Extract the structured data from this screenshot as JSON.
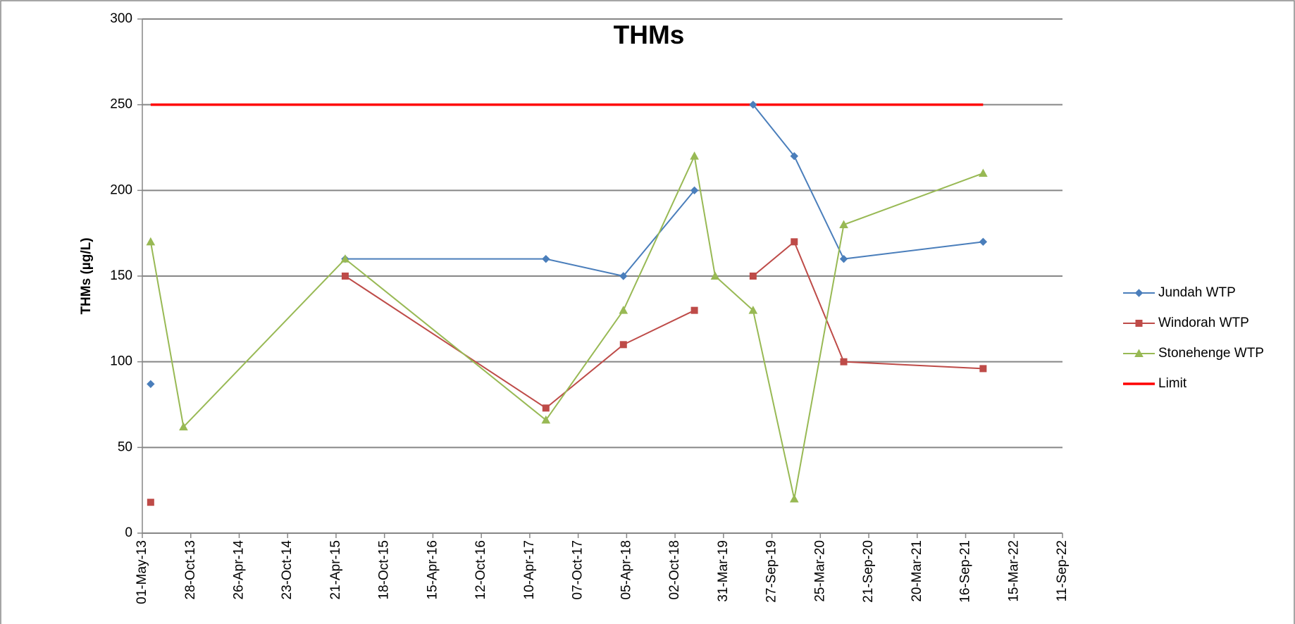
{
  "chart_data": {
    "type": "line",
    "title": "THMs",
    "y_label": "THMs (µg/L)",
    "x": [
      "2013-06-01",
      "2013-10-01",
      "2015-05-25",
      "2017-06-09",
      "2018-03-24",
      "2018-12-13",
      "2019-02-28",
      "2019-07-19",
      "2019-12-19",
      "2020-06-20",
      "2021-11-20"
    ],
    "series": [
      {
        "name": "Jundah WTP",
        "color": "#4a7ebb",
        "marker": "diamond",
        "values": [
          87,
          null,
          160,
          160,
          150,
          200,
          null,
          250,
          220,
          160,
          170
        ]
      },
      {
        "name": "Windorah WTP",
        "color": "#be4b48",
        "marker": "square",
        "values": [
          18,
          null,
          150,
          73,
          110,
          130,
          null,
          150,
          170,
          100,
          96
        ]
      },
      {
        "name": "Stonehenge WTP",
        "color": "#98b954",
        "marker": "triangle",
        "values": [
          170,
          62,
          160,
          66,
          130,
          220,
          150,
          130,
          20,
          180,
          210
        ]
      }
    ],
    "limit": {
      "name": "Limit",
      "color": "#ff0000",
      "value": 250,
      "x": [
        "2013-06-01",
        "2021-11-20"
      ]
    },
    "xlim": [
      "2013-05-01",
      "2022-09-11"
    ],
    "xticks": [
      {
        "value": "2013-05-01",
        "label": "01-May-13"
      },
      {
        "value": "2013-10-28",
        "label": "28-Oct-13"
      },
      {
        "value": "2014-04-26",
        "label": "26-Apr-14"
      },
      {
        "value": "2014-10-23",
        "label": "23-Oct-14"
      },
      {
        "value": "2015-04-21",
        "label": "21-Apr-15"
      },
      {
        "value": "2015-10-18",
        "label": "18-Oct-15"
      },
      {
        "value": "2016-04-15",
        "label": "15-Apr-16"
      },
      {
        "value": "2016-10-12",
        "label": "12-Oct-16"
      },
      {
        "value": "2017-04-10",
        "label": "10-Apr-17"
      },
      {
        "value": "2017-10-07",
        "label": "07-Oct-17"
      },
      {
        "value": "2018-04-05",
        "label": "05-Apr-18"
      },
      {
        "value": "2018-10-02",
        "label": "02-Oct-18"
      },
      {
        "value": "2019-03-31",
        "label": "31-Mar-19"
      },
      {
        "value": "2019-09-27",
        "label": "27-Sep-19"
      },
      {
        "value": "2020-03-25",
        "label": "25-Mar-20"
      },
      {
        "value": "2020-09-21",
        "label": "21-Sep-20"
      },
      {
        "value": "2021-03-20",
        "label": "20-Mar-21"
      },
      {
        "value": "2021-09-16",
        "label": "16-Sep-21"
      },
      {
        "value": "2022-03-15",
        "label": "15-Mar-22"
      },
      {
        "value": "2022-09-11",
        "label": "11-Sep-22"
      }
    ],
    "ylim": [
      0,
      300
    ],
    "yticks": [
      0,
      50,
      100,
      150,
      200,
      250,
      300
    ],
    "grid": true,
    "legend": "right"
  }
}
